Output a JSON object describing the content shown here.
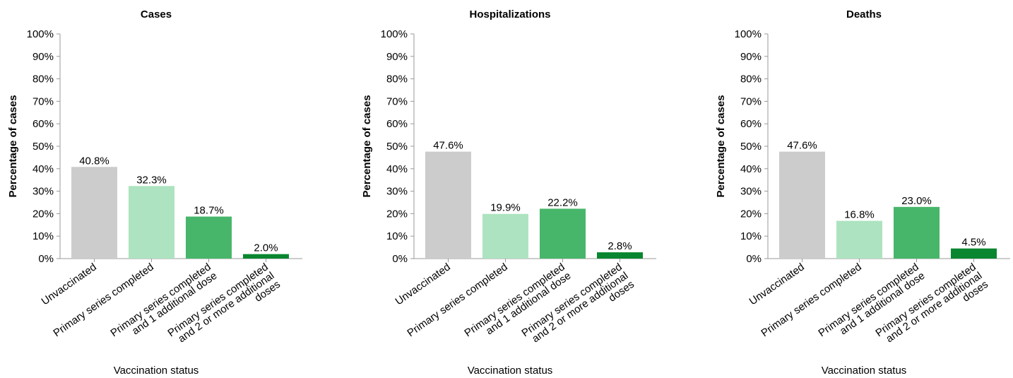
{
  "chart_data": [
    {
      "type": "bar",
      "title": "Cases",
      "x_label": "Vaccination status",
      "y_label": "Percentage of cases",
      "categories": [
        "Unvaccinated",
        "Primary series completed",
        "Primary series completed\nand 1 additional dose",
        "Primary series completed\nand 2 or more additional\ndoses"
      ],
      "values": [
        40.8,
        32.3,
        18.7,
        2.0
      ],
      "value_labels": [
        "40.8%",
        "32.3%",
        "18.7%",
        "2.0%"
      ],
      "colors": [
        "#cccccc",
        "#ade3c0",
        "#47b66a",
        "#09862f"
      ],
      "ylim": [
        0,
        100
      ],
      "yticks": [
        {
          "value": 0,
          "label": "0%"
        },
        {
          "value": 10,
          "label": "10%"
        },
        {
          "value": 20,
          "label": "20%"
        },
        {
          "value": 30,
          "label": "30%"
        },
        {
          "value": 40,
          "label": "40%"
        },
        {
          "value": 50,
          "label": "50%"
        },
        {
          "value": 60,
          "label": "60%"
        },
        {
          "value": 70,
          "label": "70%"
        },
        {
          "value": 80,
          "label": "80%"
        },
        {
          "value": 90,
          "label": "90%"
        },
        {
          "value": 100,
          "label": "100%"
        }
      ]
    },
    {
      "type": "bar",
      "title": "Hospitalizations",
      "x_label": "Vaccination status",
      "y_label": "Percentage of cases",
      "categories": [
        "Unvaccinated",
        "Primary series completed",
        "Primary series completed\nand 1 additional dose",
        "Primary series completed\nand 2 or more additional\ndoses"
      ],
      "values": [
        47.6,
        19.9,
        22.2,
        2.8
      ],
      "value_labels": [
        "47.6%",
        "19.9%",
        "22.2%",
        "2.8%"
      ],
      "colors": [
        "#cccccc",
        "#ade3c0",
        "#47b66a",
        "#09862f"
      ],
      "ylim": [
        0,
        100
      ],
      "yticks": [
        {
          "value": 0,
          "label": "0%"
        },
        {
          "value": 10,
          "label": "10%"
        },
        {
          "value": 20,
          "label": "20%"
        },
        {
          "value": 30,
          "label": "30%"
        },
        {
          "value": 40,
          "label": "40%"
        },
        {
          "value": 50,
          "label": "50%"
        },
        {
          "value": 60,
          "label": "60%"
        },
        {
          "value": 70,
          "label": "70%"
        },
        {
          "value": 80,
          "label": "80%"
        },
        {
          "value": 90,
          "label": "90%"
        },
        {
          "value": 100,
          "label": "100%"
        }
      ]
    },
    {
      "type": "bar",
      "title": "Deaths",
      "x_label": "Vaccination status",
      "y_label": "Percentage of cases",
      "categories": [
        "Unvaccinated",
        "Primary series completed",
        "Primary series completed\nand 1 additional dose",
        "Primary series completed\nand 2 or more additional\ndoses"
      ],
      "values": [
        47.6,
        16.8,
        23.0,
        4.5
      ],
      "value_labels": [
        "47.6%",
        "16.8%",
        "23.0%",
        "4.5%"
      ],
      "colors": [
        "#cccccc",
        "#ade3c0",
        "#47b66a",
        "#09862f"
      ],
      "ylim": [
        0,
        100
      ],
      "yticks": [
        {
          "value": 0,
          "label": "0%"
        },
        {
          "value": 10,
          "label": "10%"
        },
        {
          "value": 20,
          "label": "20%"
        },
        {
          "value": 30,
          "label": "30%"
        },
        {
          "value": 40,
          "label": "40%"
        },
        {
          "value": 50,
          "label": "50%"
        },
        {
          "value": 60,
          "label": "60%"
        },
        {
          "value": 70,
          "label": "70%"
        },
        {
          "value": 80,
          "label": "80%"
        },
        {
          "value": 90,
          "label": "90%"
        },
        {
          "value": 100,
          "label": "100%"
        }
      ]
    }
  ]
}
